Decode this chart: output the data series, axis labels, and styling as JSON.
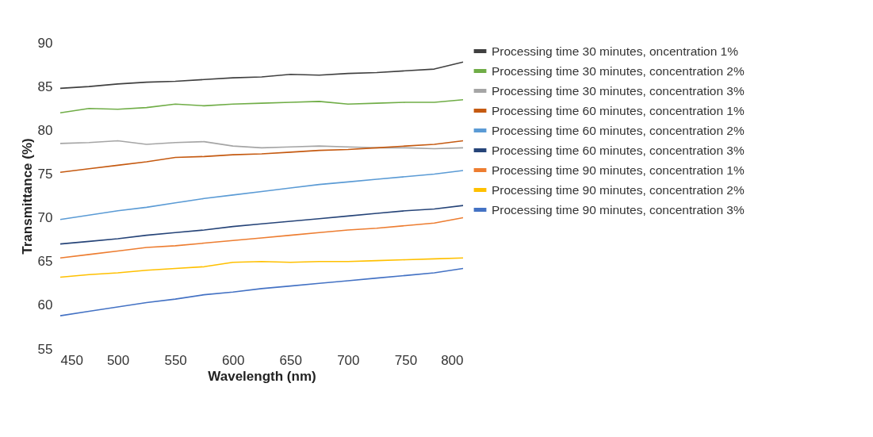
{
  "chart_data": {
    "type": "line",
    "xlabel": "Wavelength (nm)",
    "ylabel": "Transmittance (%)",
    "x": [
      450,
      475,
      500,
      525,
      550,
      575,
      600,
      625,
      650,
      675,
      700,
      725,
      750,
      775,
      800
    ],
    "xlim": [
      450,
      800
    ],
    "xticks": [
      450,
      500,
      550,
      600,
      650,
      700,
      750,
      800
    ],
    "ylim": [
      55,
      90
    ],
    "yticks": [
      55,
      60,
      65,
      70,
      75,
      80,
      85,
      90
    ],
    "grid": false,
    "legend": "right",
    "marker": "none",
    "line_style": "solid",
    "series": [
      {
        "name": "Processing time 30 minutes, oncentration 1%",
        "color": "#404040",
        "values": [
          84.8,
          85.0,
          85.3,
          85.5,
          85.6,
          85.8,
          86.0,
          86.1,
          86.4,
          86.3,
          86.5,
          86.6,
          86.8,
          87.0,
          87.8
        ]
      },
      {
        "name": "Processing time 30 minutes, concentration 2%",
        "color": "#70ad47",
        "values": [
          82.0,
          82.5,
          82.4,
          82.6,
          83.0,
          82.8,
          83.0,
          83.1,
          83.2,
          83.3,
          83.0,
          83.1,
          83.2,
          83.2,
          83.5
        ]
      },
      {
        "name": "Processing time 30 minutes, concentration 3%",
        "color": "#a5a5a5",
        "values": [
          78.5,
          78.6,
          78.8,
          78.4,
          78.6,
          78.7,
          78.2,
          78.0,
          78.1,
          78.2,
          78.1,
          78.0,
          78.0,
          77.9,
          78.0
        ]
      },
      {
        "name": "Processing time 60 minutes, concentration 1%",
        "color": "#c55a11",
        "values": [
          75.2,
          75.6,
          76.0,
          76.4,
          76.9,
          77.0,
          77.2,
          77.3,
          77.5,
          77.7,
          77.8,
          78.0,
          78.2,
          78.4,
          78.8
        ]
      },
      {
        "name": "Processing time 60 minutes, concentration 2%",
        "color": "#5b9bd5",
        "values": [
          69.8,
          70.3,
          70.8,
          71.2,
          71.7,
          72.2,
          72.6,
          73.0,
          73.4,
          73.8,
          74.1,
          74.4,
          74.7,
          75.0,
          75.4
        ]
      },
      {
        "name": "Processing time 60 minutes, concentration 3%",
        "color": "#264478",
        "values": [
          67.0,
          67.3,
          67.6,
          68.0,
          68.3,
          68.6,
          69.0,
          69.3,
          69.6,
          69.9,
          70.2,
          70.5,
          70.8,
          71.0,
          71.4
        ]
      },
      {
        "name": "Processing time 90 minutes, concentration 1%",
        "color": "#ed7d31",
        "values": [
          65.4,
          65.8,
          66.2,
          66.6,
          66.8,
          67.1,
          67.4,
          67.7,
          68.0,
          68.3,
          68.6,
          68.8,
          69.1,
          69.4,
          70.0
        ]
      },
      {
        "name": "Processing time 90 minutes, concentration 2%",
        "color": "#ffc000",
        "values": [
          63.2,
          63.5,
          63.7,
          64.0,
          64.2,
          64.4,
          64.9,
          65.0,
          64.9,
          65.0,
          65.0,
          65.1,
          65.2,
          65.3,
          65.4
        ]
      },
      {
        "name": "Processing time 90 minutes, concentration 3%",
        "color": "#4472c4",
        "values": [
          58.8,
          59.3,
          59.8,
          60.3,
          60.7,
          61.2,
          61.5,
          61.9,
          62.2,
          62.5,
          62.8,
          63.1,
          63.4,
          63.7,
          64.2
        ]
      }
    ]
  }
}
